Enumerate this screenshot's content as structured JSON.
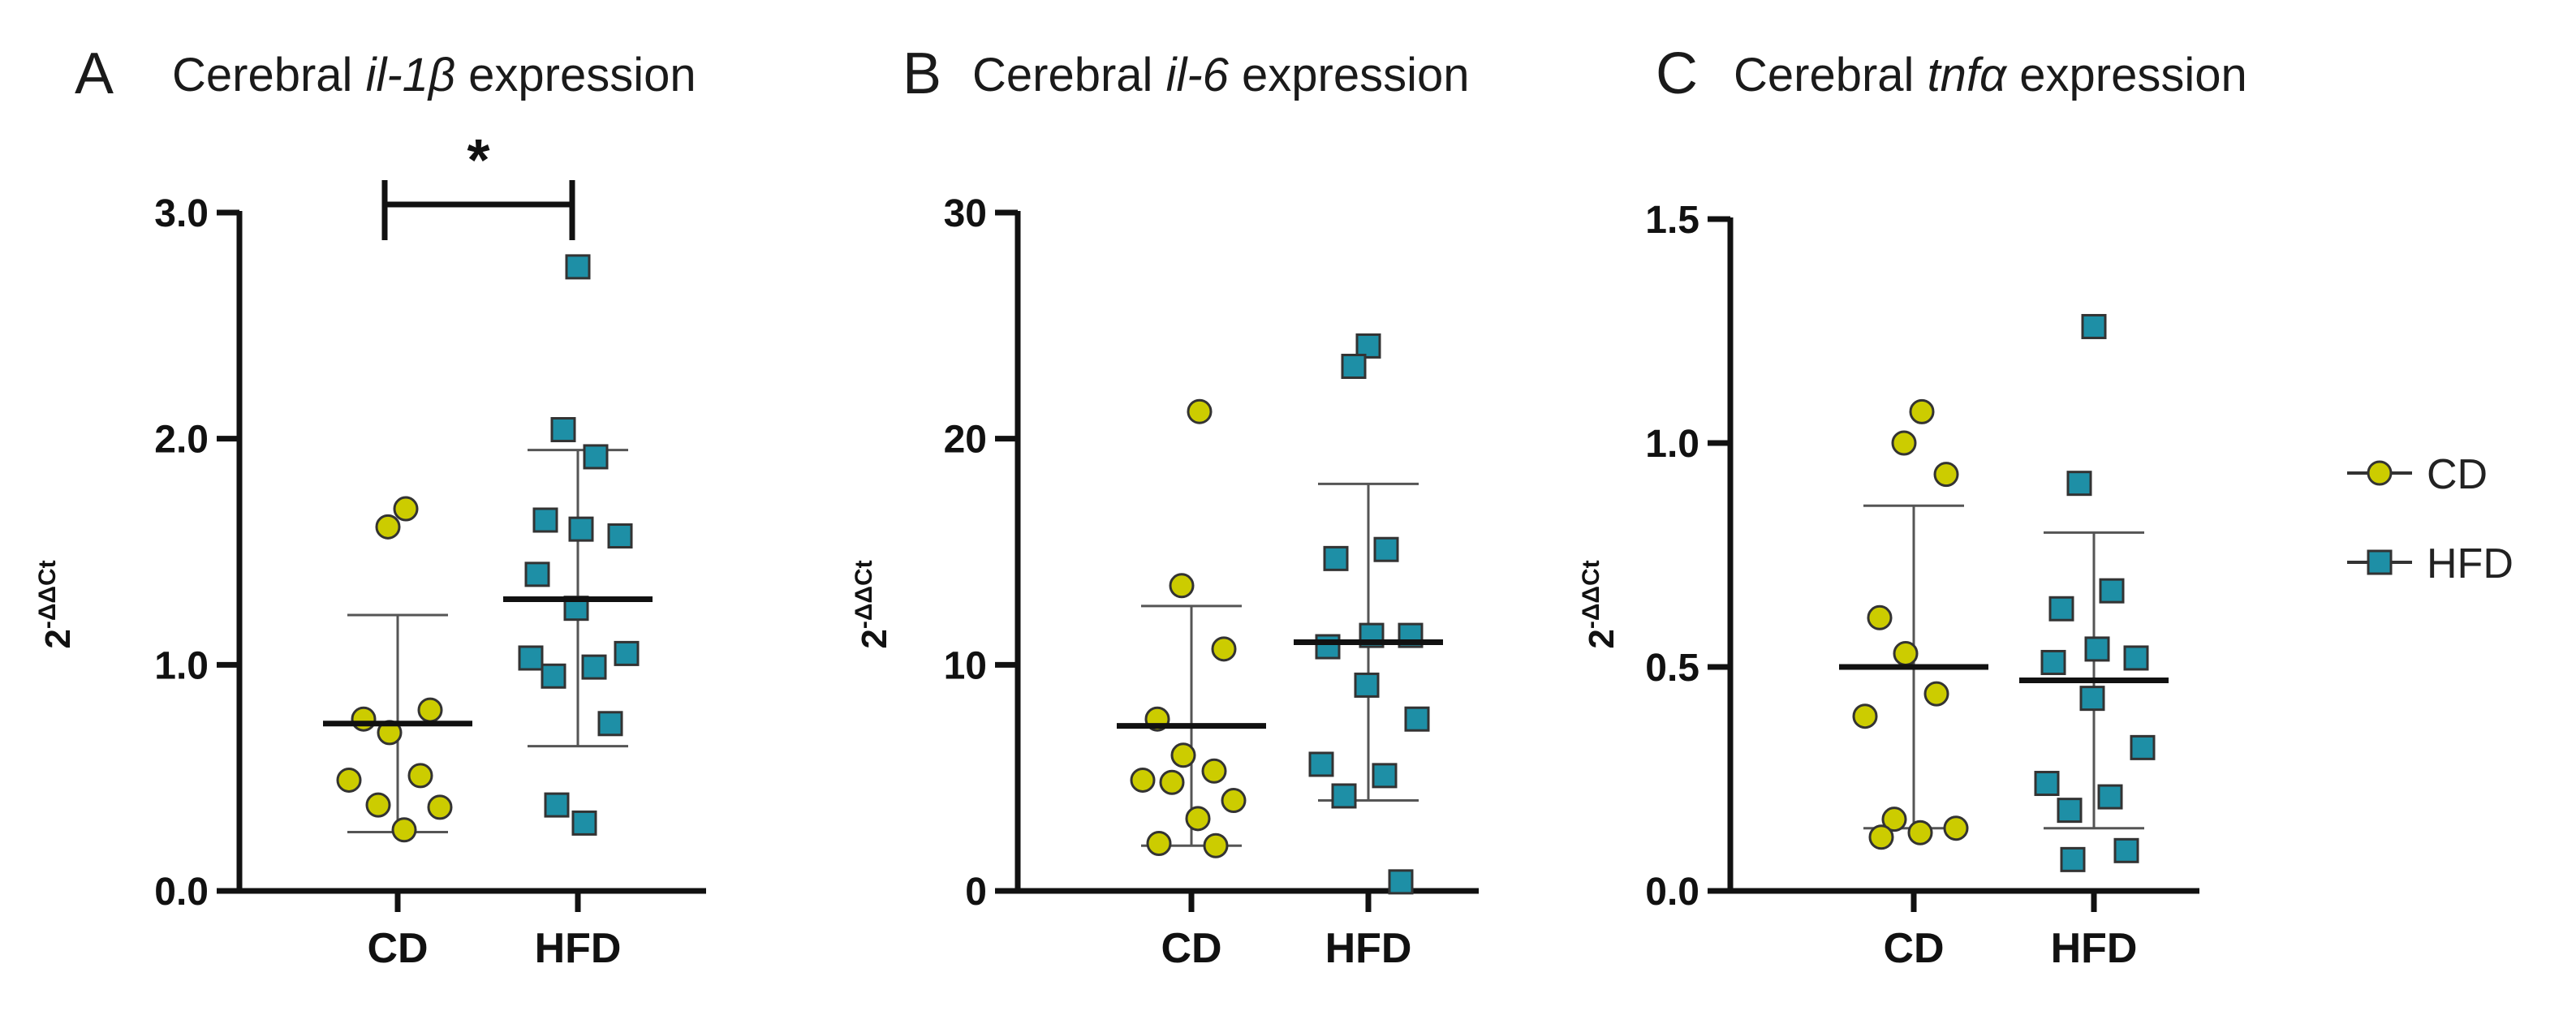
{
  "chart_data": [
    {
      "type": "scatter",
      "panel_letter": "A",
      "title_prefix": "Cerebral",
      "title_gene": "il-1β",
      "title_suffix": "expression",
      "ylabel_base": "2",
      "ylabel_exp": "-ΔΔCt",
      "categories": [
        "CD",
        "HFD"
      ],
      "yticks": [
        "0.0",
        "1.0",
        "2.0",
        "3.0"
      ],
      "ylim": [
        0,
        3.0
      ],
      "series": [
        {
          "name": "CD",
          "marker": "circle",
          "mean": 0.74,
          "sd_upper": 1.22,
          "sd_lower": 0.26,
          "values": [
            1.69,
            1.61,
            0.8,
            0.76,
            0.7,
            0.51,
            0.49,
            0.38,
            0.37,
            0.27
          ]
        },
        {
          "name": "HFD",
          "marker": "square",
          "mean": 1.29,
          "sd_upper": 1.95,
          "sd_lower": 0.64,
          "values": [
            2.76,
            2.04,
            1.92,
            1.64,
            1.6,
            1.57,
            1.4,
            1.25,
            1.05,
            1.03,
            0.99,
            0.95,
            0.74,
            0.38,
            0.3
          ]
        }
      ],
      "significance": {
        "between": [
          "CD",
          "HFD"
        ],
        "label": "*"
      },
      "grid": false
    },
    {
      "type": "scatter",
      "panel_letter": "B",
      "title_prefix": "Cerebral",
      "title_gene": "il-6",
      "title_suffix": "expression",
      "ylabel_base": "2",
      "ylabel_exp": "-ΔΔCt",
      "categories": [
        "CD",
        "HFD"
      ],
      "yticks": [
        "0",
        "10",
        "20",
        "30"
      ],
      "ylim": [
        0,
        30
      ],
      "series": [
        {
          "name": "CD",
          "marker": "circle",
          "mean": 7.3,
          "sd_upper": 12.6,
          "sd_lower": 2.0,
          "values": [
            21.2,
            13.5,
            10.7,
            7.6,
            6.0,
            5.3,
            4.9,
            4.8,
            4.0,
            3.2,
            2.1,
            2.0
          ]
        },
        {
          "name": "HFD",
          "marker": "square",
          "mean": 11.0,
          "sd_upper": 18.0,
          "sd_lower": 4.0,
          "values": [
            24.1,
            23.2,
            15.1,
            14.7,
            11.3,
            11.3,
            10.8,
            9.1,
            7.6,
            5.6,
            5.1,
            4.2,
            0.4
          ]
        }
      ],
      "grid": false
    },
    {
      "type": "scatter",
      "panel_letter": "C",
      "title_prefix": "Cerebral",
      "title_gene": "tnfα",
      "title_suffix": "expression",
      "ylabel_base": "2",
      "ylabel_exp": "-ΔΔCt",
      "categories": [
        "CD",
        "HFD"
      ],
      "yticks": [
        "0.0",
        "0.5",
        "1.0",
        "1.5"
      ],
      "ylim": [
        0,
        1.5
      ],
      "series": [
        {
          "name": "CD",
          "marker": "circle",
          "mean": 0.5,
          "sd_upper": 0.86,
          "sd_lower": 0.14,
          "values": [
            1.07,
            1.0,
            0.93,
            0.61,
            0.53,
            0.44,
            0.39,
            0.16,
            0.14,
            0.13,
            0.12
          ]
        },
        {
          "name": "HFD",
          "marker": "square",
          "mean": 0.47,
          "sd_upper": 0.8,
          "sd_lower": 0.14,
          "values": [
            1.26,
            0.91,
            0.67,
            0.63,
            0.54,
            0.52,
            0.51,
            0.43,
            0.32,
            0.24,
            0.21,
            0.18,
            0.09,
            0.07
          ]
        }
      ],
      "grid": false
    }
  ],
  "legend": {
    "placement": "right",
    "items": [
      {
        "label": "CD",
        "marker": "circle",
        "color": "#cccc00"
      },
      {
        "label": "HFD",
        "marker": "square",
        "color": "#1e8fa6"
      }
    ]
  },
  "colors": {
    "cd_fill": "#cccc00",
    "hfd_fill": "#1e8fa6",
    "marker_stroke": "#333333",
    "axis": "#111111",
    "mean_line": "#111111",
    "sd_line": "#555555"
  }
}
